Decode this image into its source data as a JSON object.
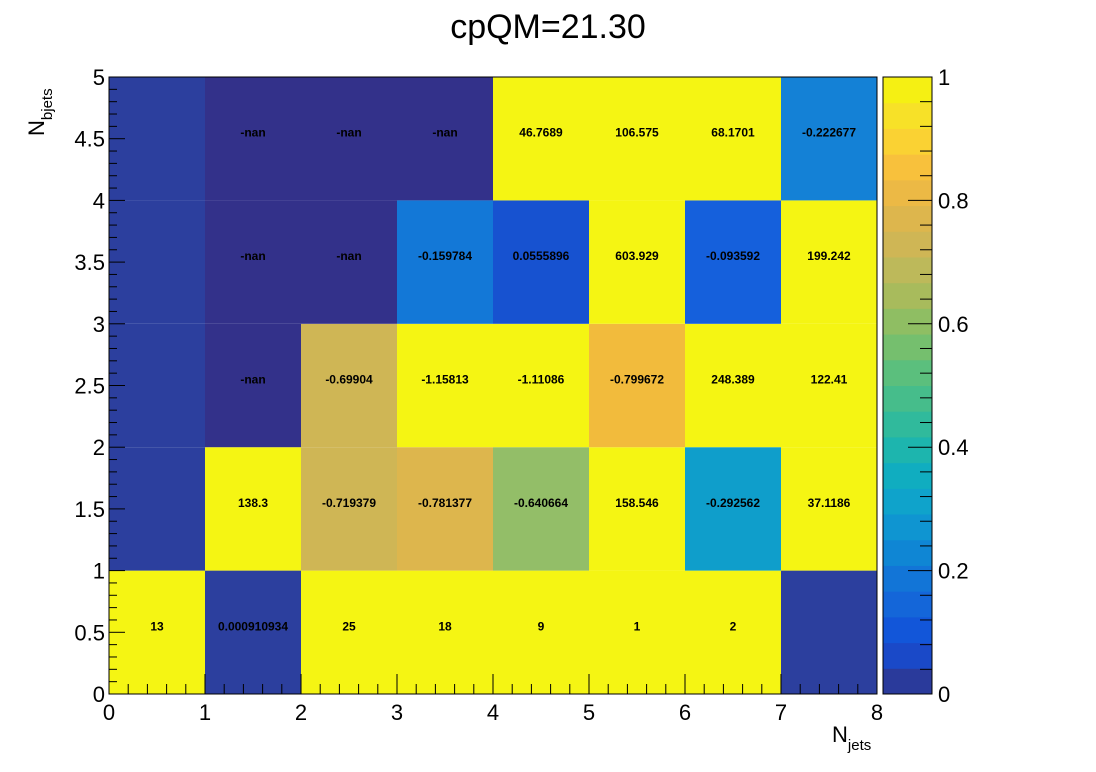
{
  "chart_data": {
    "type": "heatmap",
    "title": "cpQM=21.30",
    "xlabel": {
      "main": "N",
      "sub": "jets"
    },
    "ylabel": {
      "main": "N",
      "sub": "bjets"
    },
    "xlim": [
      0,
      8
    ],
    "ylim": [
      0,
      5
    ],
    "x_ticks": [
      "0",
      "1",
      "2",
      "3",
      "4",
      "5",
      "6",
      "7",
      "8"
    ],
    "y_ticks": [
      "0",
      "0.5",
      "1",
      "1.5",
      "2",
      "2.5",
      "3",
      "3.5",
      "4",
      "4.5",
      "5"
    ],
    "colorbar": {
      "range": [
        0,
        1
      ],
      "ticks": [
        "0",
        "0.2",
        "0.4",
        "0.6",
        "0.8",
        "1"
      ],
      "colors": [
        "#2a3a9b",
        "#1a49c8",
        "#1256d9",
        "#1466d9",
        "#1275d7",
        "#0f86d4",
        "#0f95d1",
        "#0fa3cb",
        "#10adc0",
        "#1db5ae",
        "#30ba9c",
        "#46bd8b",
        "#5bbf7d",
        "#75bf6e",
        "#8fbe63",
        "#a8bb5c",
        "#bdb95a",
        "#cfb655",
        "#ddb64d",
        "#ecb945",
        "#f8c13c",
        "#fad233",
        "#f7e128",
        "#f5f013"
      ]
    },
    "cells": [
      {
        "x": 0,
        "y": 0,
        "color": "#f5f513",
        "label": "13"
      },
      {
        "x": 1,
        "y": 0,
        "color": "#2c3f9e",
        "label": "0.000910934"
      },
      {
        "x": 2,
        "y": 0,
        "color": "#f5f513",
        "label": "25"
      },
      {
        "x": 3,
        "y": 0,
        "color": "#f5f513",
        "label": "18"
      },
      {
        "x": 4,
        "y": 0,
        "color": "#f5f513",
        "label": "9"
      },
      {
        "x": 5,
        "y": 0,
        "color": "#f5f513",
        "label": "1"
      },
      {
        "x": 6,
        "y": 0,
        "color": "#f5f513",
        "label": "2"
      },
      {
        "x": 7,
        "y": 0,
        "color": "#2c3f9e",
        "label": ""
      },
      {
        "x": 0,
        "y": 1,
        "color": "#2c3f9e",
        "label": ""
      },
      {
        "x": 1,
        "y": 1,
        "color": "#f5f513",
        "label": "138.3"
      },
      {
        "x": 2,
        "y": 1,
        "color": "#cfb655",
        "label": "-0.719379"
      },
      {
        "x": 3,
        "y": 1,
        "color": "#ddb64d",
        "label": "-0.781377"
      },
      {
        "x": 4,
        "y": 1,
        "color": "#93be68",
        "label": "-0.640664"
      },
      {
        "x": 5,
        "y": 1,
        "color": "#f5f513",
        "label": "158.546"
      },
      {
        "x": 6,
        "y": 1,
        "color": "#0f9ecb",
        "label": "-0.292562"
      },
      {
        "x": 7,
        "y": 1,
        "color": "#f5f513",
        "label": "37.1186"
      },
      {
        "x": 0,
        "y": 2,
        "color": "#2c3f9e",
        "label": ""
      },
      {
        "x": 1,
        "y": 2,
        "color": "#33318a",
        "label": "-nan"
      },
      {
        "x": 2,
        "y": 2,
        "color": "#cfb655",
        "label": "-0.69904"
      },
      {
        "x": 3,
        "y": 2,
        "color": "#f5f513",
        "label": "-1.15813"
      },
      {
        "x": 4,
        "y": 2,
        "color": "#f5f513",
        "label": "-1.11086"
      },
      {
        "x": 5,
        "y": 2,
        "color": "#f2bb3c",
        "label": "-0.799672"
      },
      {
        "x": 6,
        "y": 2,
        "color": "#f5f513",
        "label": "248.389"
      },
      {
        "x": 7,
        "y": 2,
        "color": "#f5f513",
        "label": "122.41"
      },
      {
        "x": 0,
        "y": 3,
        "color": "#2c3f9e",
        "label": ""
      },
      {
        "x": 1,
        "y": 3,
        "color": "#33318a",
        "label": "-nan"
      },
      {
        "x": 2,
        "y": 3,
        "color": "#33318a",
        "label": "-nan"
      },
      {
        "x": 3,
        "y": 3,
        "color": "#1378d7",
        "label": "-0.159784"
      },
      {
        "x": 4,
        "y": 3,
        "color": "#1752d0",
        "label": "0.0555896"
      },
      {
        "x": 5,
        "y": 3,
        "color": "#f5f513",
        "label": "603.929"
      },
      {
        "x": 6,
        "y": 3,
        "color": "#1560dc",
        "label": "-0.093592"
      },
      {
        "x": 7,
        "y": 3,
        "color": "#f5f513",
        "label": "199.242"
      },
      {
        "x": 0,
        "y": 4,
        "color": "#2c3f9e",
        "label": ""
      },
      {
        "x": 1,
        "y": 4,
        "color": "#33318a",
        "label": "-nan"
      },
      {
        "x": 2,
        "y": 4,
        "color": "#33318a",
        "label": "-nan"
      },
      {
        "x": 3,
        "y": 4,
        "color": "#33318a",
        "label": "-nan"
      },
      {
        "x": 4,
        "y": 4,
        "color": "#f5f513",
        "label": "46.7689"
      },
      {
        "x": 5,
        "y": 4,
        "color": "#f5f513",
        "label": "106.575"
      },
      {
        "x": 6,
        "y": 4,
        "color": "#f5f513",
        "label": "68.1701"
      },
      {
        "x": 7,
        "y": 4,
        "color": "#1481d6",
        "label": "-0.222677"
      }
    ]
  }
}
